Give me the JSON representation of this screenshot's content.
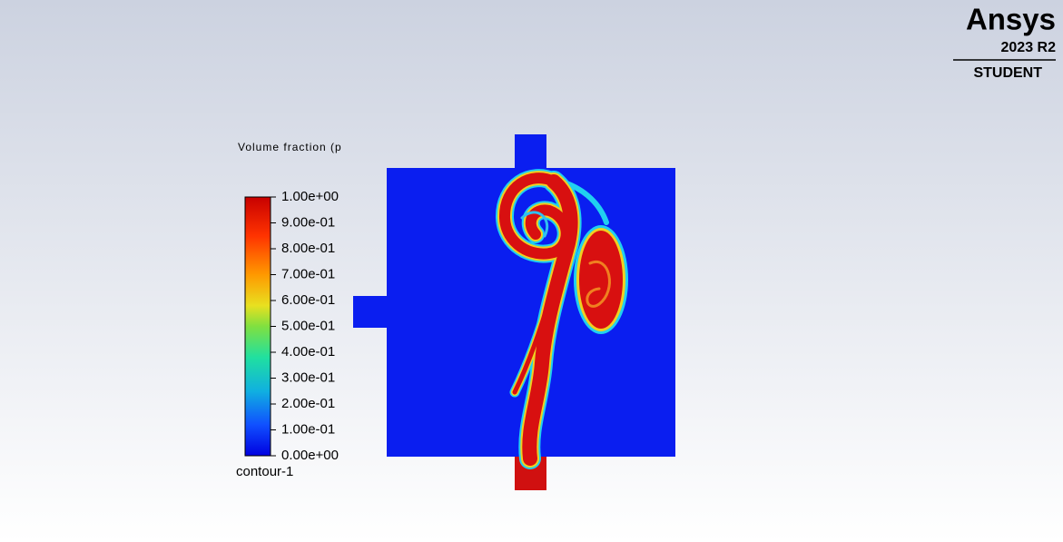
{
  "legend": {
    "title": "Volume fraction (p",
    "ticks": [
      "1.00e+00",
      "9.00e-01",
      "8.00e-01",
      "7.00e-01",
      "6.00e-01",
      "5.00e-01",
      "4.00e-01",
      "3.00e-01",
      "2.00e-01",
      "1.00e-01",
      "0.00e+00"
    ],
    "name": "contour-1"
  },
  "logo": {
    "brand": "Ansys",
    "version": "2023 R2",
    "edition": "STUDENT"
  }
}
